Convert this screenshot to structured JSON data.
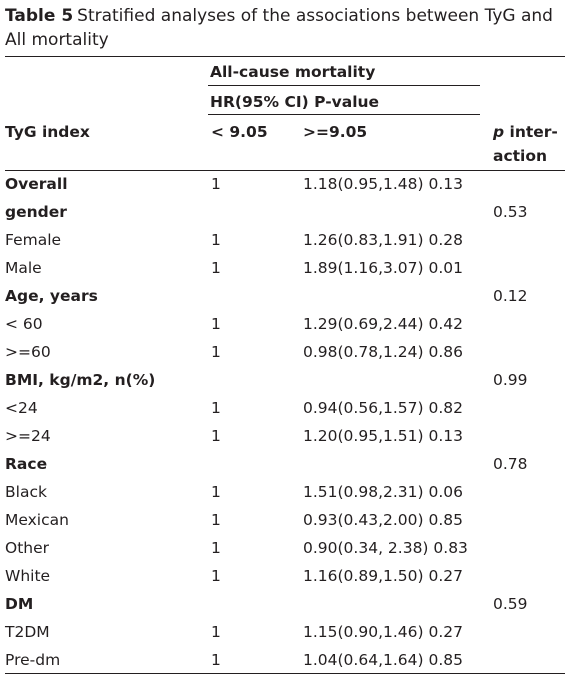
{
  "caption": {
    "label": "Table 5",
    "text": "Stratified analyses of the associations between TyG and All mortality"
  },
  "header": {
    "group": "All-cause mortality",
    "sub": "HR(95% CI) P-value",
    "col_index": "TyG index",
    "col_low": "< 9.05",
    "col_high": ">=9.05",
    "col_p_italic": "p",
    "col_p_rest": " inter-",
    "col_p_line2": "action"
  },
  "rows": [
    {
      "label": "Overall",
      "bold": true,
      "low": "1",
      "high": "1.18(0.95,1.48) 0.13",
      "p": ""
    },
    {
      "label": "gender",
      "bold": true,
      "low": "",
      "high": "",
      "p": "0.53"
    },
    {
      "label": "Female",
      "bold": false,
      "low": "1",
      "high": "1.26(0.83,1.91) 0.28",
      "p": ""
    },
    {
      "label": "Male",
      "bold": false,
      "low": "1",
      "high": "1.89(1.16,3.07) 0.01",
      "p": ""
    },
    {
      "label": "Age, years",
      "bold": true,
      "low": "",
      "high": "",
      "p": "0.12"
    },
    {
      "label": "< 60",
      "bold": false,
      "low": "1",
      "high": "1.29(0.69,2.44) 0.42",
      "p": ""
    },
    {
      "label": ">=60",
      "bold": false,
      "low": "1",
      "high": "0.98(0.78,1.24) 0.86",
      "p": ""
    },
    {
      "label": "BMI, kg/m2, n(%)",
      "bold": true,
      "low": "",
      "high": "",
      "p": "0.99"
    },
    {
      "label": "<24",
      "bold": false,
      "low": "1",
      "high": "0.94(0.56,1.57) 0.82",
      "p": ""
    },
    {
      "label": ">=24",
      "bold": false,
      "low": "1",
      "high": "1.20(0.95,1.51) 0.13",
      "p": ""
    },
    {
      "label": "Race",
      "bold": true,
      "low": "",
      "high": "",
      "p": "0.78"
    },
    {
      "label": "Black",
      "bold": false,
      "low": "1",
      "high": "1.51(0.98,2.31) 0.06",
      "p": ""
    },
    {
      "label": "Mexican",
      "bold": false,
      "low": "1",
      "high": "0.93(0.43,2.00) 0.85",
      "p": ""
    },
    {
      "label": "Other",
      "bold": false,
      "low": "1",
      "high": "0.90(0.34, 2.38) 0.83",
      "p": ""
    },
    {
      "label": "White",
      "bold": false,
      "low": "1",
      "high": "1.16(0.89,1.50) 0.27",
      "p": ""
    },
    {
      "label": "DM",
      "bold": true,
      "low": "",
      "high": "",
      "p": "0.59"
    },
    {
      "label": "T2DM",
      "bold": false,
      "low": "1",
      "high": "1.15(0.90,1.46) 0.27",
      "p": ""
    },
    {
      "label": "Pre-dm",
      "bold": false,
      "low": "1",
      "high": "1.04(0.64,1.64) 0.85",
      "p": ""
    }
  ]
}
